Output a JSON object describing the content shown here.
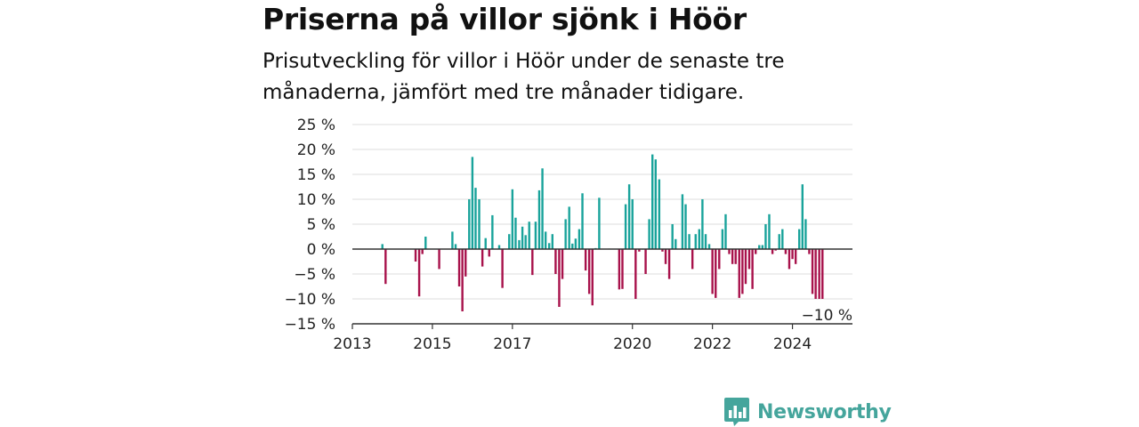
{
  "title": "Priserna på villor sjönk i Höör",
  "subtitle": "Prisutveckling för villor i Höör under de senaste tre månaderna, jämfört med tre månader tidigare.",
  "brand": {
    "name": "Newsworthy",
    "icon": "newsworthy-logo-icon"
  },
  "colors": {
    "positive": "#19a39b",
    "negative": "#a8124b",
    "axis": "#333333",
    "grid": "#dcdcdc"
  },
  "chart_data": {
    "type": "bar",
    "title": "Priserna på villor sjönk i Höör",
    "xlabel": "",
    "ylabel": "",
    "ylim": [
      -15,
      25
    ],
    "y_ticks": [
      25,
      20,
      15,
      10,
      5,
      0,
      -5,
      -10,
      -15
    ],
    "y_tick_labels": [
      "25 %",
      "20 %",
      "15 %",
      "10 %",
      "5 %",
      "0 %",
      "−5 %",
      "−10 %",
      "−15 %"
    ],
    "x_tick_labels": [
      "2013",
      "2015",
      "2017",
      "2020",
      "2022",
      "2024"
    ],
    "x_tick_positions": [
      2013.0,
      2015.0,
      2017.0,
      2020.0,
      2022.0,
      2024.0
    ],
    "xlim": [
      2013.0,
      2025.5
    ],
    "grid": true,
    "annotation": {
      "label": "−10 %",
      "value": -10
    },
    "x": [
      2013.75,
      2013.83,
      2014.58,
      2014.67,
      2014.75,
      2014.83,
      2015.17,
      2015.5,
      2015.58,
      2015.67,
      2015.75,
      2015.83,
      2015.92,
      2016.0,
      2016.08,
      2016.17,
      2016.25,
      2016.33,
      2016.42,
      2016.5,
      2016.67,
      2016.75,
      2016.92,
      2017.0,
      2017.08,
      2017.17,
      2017.25,
      2017.33,
      2017.42,
      2017.5,
      2017.58,
      2017.67,
      2017.75,
      2017.83,
      2017.92,
      2018.0,
      2018.08,
      2018.17,
      2018.25,
      2018.33,
      2018.42,
      2018.5,
      2018.58,
      2018.67,
      2018.75,
      2018.83,
      2018.92,
      2019.0,
      2019.08,
      2019.17,
      2019.42,
      2019.67,
      2019.75,
      2019.83,
      2019.92,
      2020.0,
      2020.08,
      2020.17,
      2020.25,
      2020.33,
      2020.42,
      2020.5,
      2020.58,
      2020.67,
      2020.75,
      2020.83,
      2020.92,
      2021.0,
      2021.08,
      2021.25,
      2021.33,
      2021.42,
      2021.5,
      2021.58,
      2021.67,
      2021.75,
      2021.83,
      2021.92,
      2022.0,
      2022.08,
      2022.17,
      2022.25,
      2022.33,
      2022.42,
      2022.5,
      2022.58,
      2022.67,
      2022.75,
      2022.83,
      2022.92,
      2023.0,
      2023.08,
      2023.17,
      2023.25,
      2023.33,
      2023.42,
      2023.5,
      2023.58,
      2023.67,
      2023.75,
      2023.83,
      2023.92,
      2024.0,
      2024.08,
      2024.17,
      2024.25,
      2024.33,
      2024.42,
      2024.5,
      2024.58,
      2024.67,
      2024.75
    ],
    "values": [
      1,
      -7,
      -2.5,
      -9.5,
      -1,
      2.5,
      -4,
      3.5,
      1,
      -7.5,
      -12.5,
      -5.5,
      10,
      18.5,
      12.3,
      10,
      -3.5,
      2.2,
      -1.5,
      6.8,
      0.8,
      -7.8,
      3,
      12,
      6.3,
      1.8,
      4.5,
      2.8,
      5.5,
      -5.2,
      5.5,
      11.8,
      16.2,
      3.5,
      1.2,
      3,
      -5,
      -11.6,
      -6,
      6,
      8.5,
      1.1,
      2.1,
      4,
      11.2,
      -4.3,
      -9,
      -11.3,
      0.2,
      10.3,
      0.1,
      -8.1,
      -8,
      9,
      13,
      10,
      -10,
      -0.5,
      0,
      -5,
      6,
      19,
      18,
      14,
      -0.5,
      -3,
      -6,
      5,
      2,
      11,
      9,
      3,
      -4,
      3,
      4,
      10,
      3,
      1,
      -9,
      -9.8,
      -4,
      4,
      7,
      -1,
      -3,
      -3,
      -9.8,
      -9,
      -7,
      -4,
      -8,
      -1,
      0.8,
      0.8,
      5,
      7,
      -1,
      -0.3,
      3,
      4,
      -1,
      -4,
      -2,
      -3,
      4,
      13,
      6,
      -1,
      -9,
      -10,
      -10,
      -10
    ]
  }
}
